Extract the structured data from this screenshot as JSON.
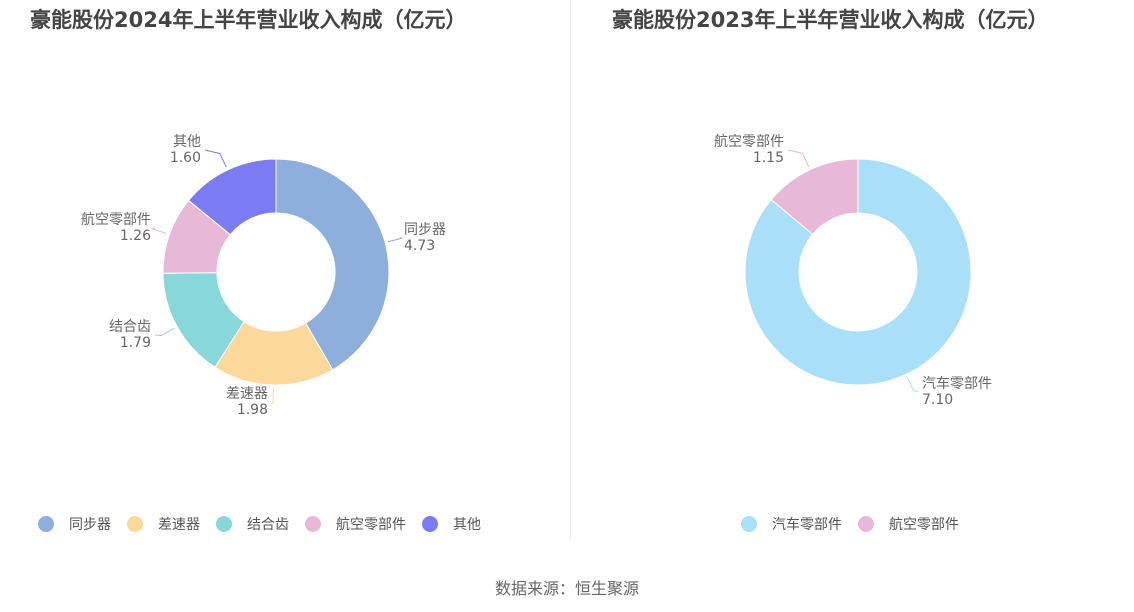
{
  "chart_data": [
    {
      "type": "pie",
      "title": "豪能股份2024年上半年营业收入构成（亿元）",
      "categories": [
        "同步器",
        "差速器",
        "结合齿",
        "航空零部件",
        "其他"
      ],
      "values": [
        4.73,
        1.98,
        1.79,
        1.26,
        1.6
      ],
      "value_labels": [
        "4.73",
        "1.98",
        "1.79",
        "1.26",
        "1.60"
      ],
      "colors": [
        "#8eaedb",
        "#fdd89b",
        "#88d8db",
        "#e8b8d8",
        "#7b7cf3"
      ],
      "legend": "bottom"
    },
    {
      "type": "pie",
      "title": "豪能股份2023年上半年营业收入构成（亿元）",
      "categories": [
        "汽车零部件",
        "航空零部件"
      ],
      "values": [
        7.1,
        1.15
      ],
      "value_labels": [
        "7.10",
        "1.15"
      ],
      "colors": [
        "#a9dff9",
        "#e8b8d8"
      ],
      "legend": "bottom"
    }
  ],
  "source": "数据来源：恒生聚源"
}
